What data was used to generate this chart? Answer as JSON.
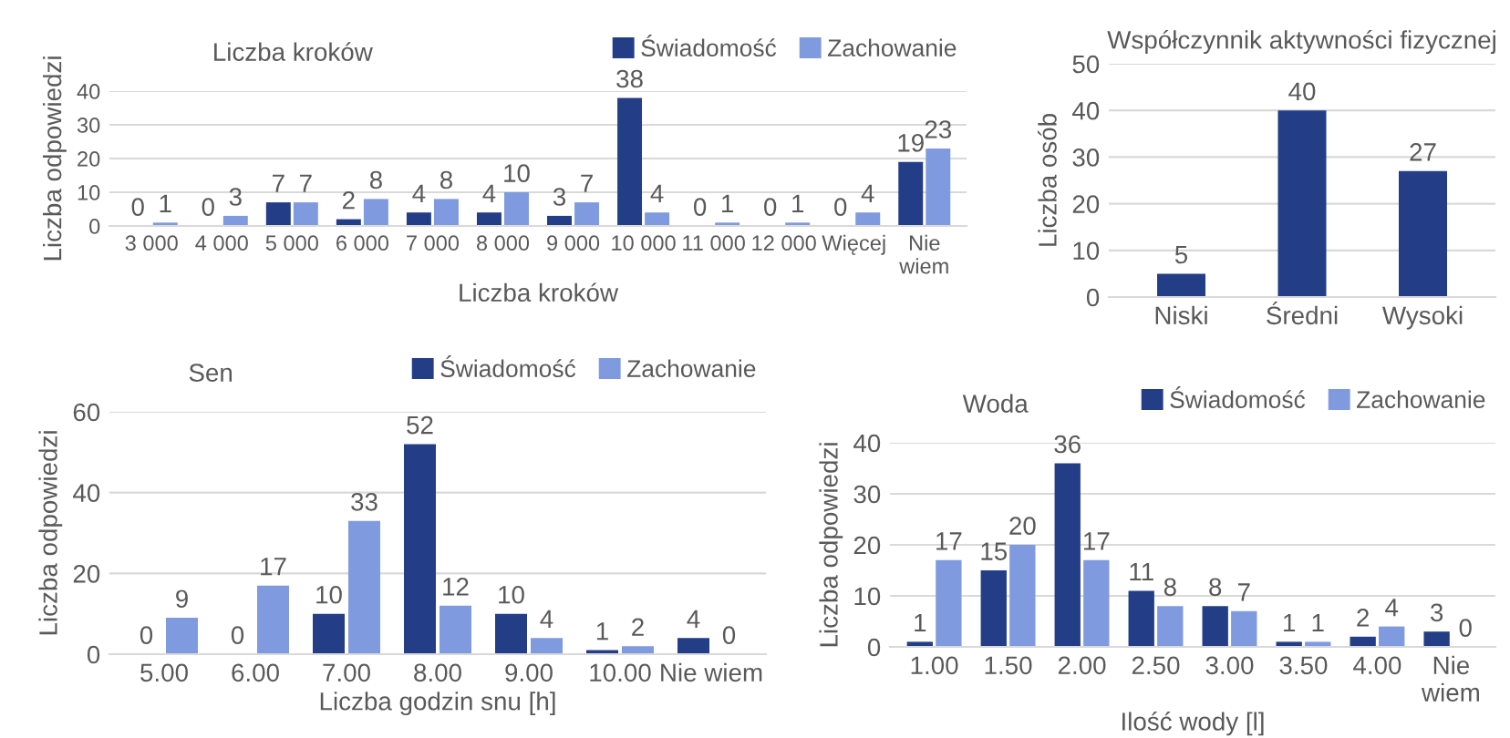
{
  "chart_data": [
    {
      "type": "bar",
      "title": "Liczba kroków",
      "xlabel": "Liczba kroków",
      "ylabel": "Liczba odpowiedzi",
      "categories": [
        "3 000",
        "4 000",
        "5 000",
        "6 000",
        "7 000",
        "8 000",
        "9 000",
        "10 000",
        "11 000",
        "12 000",
        "Więcej",
        "Nie\nwiem"
      ],
      "series": [
        {
          "name": "Świadomość",
          "color": "#233e86",
          "values": [
            0,
            0,
            7,
            2,
            4,
            4,
            3,
            38,
            0,
            0,
            0,
            19
          ]
        },
        {
          "name": "Zachowanie",
          "color": "#7f9ade",
          "values": [
            1,
            3,
            7,
            8,
            8,
            10,
            7,
            4,
            1,
            1,
            4,
            23
          ]
        }
      ],
      "ylim": [
        0,
        40
      ],
      "yticks": [
        0,
        10,
        20,
        30,
        40
      ],
      "grid": "y",
      "legend": "top",
      "data_labels": true
    },
    {
      "type": "bar",
      "title": "Współczynnik aktywności fizycznej",
      "ylabel": "Liczba osób",
      "categories": [
        "Niski",
        "Średni",
        "Wysoki"
      ],
      "series": [
        {
          "color": "#233e86",
          "values": [
            5,
            40,
            27
          ]
        }
      ],
      "ylim": [
        0,
        50
      ],
      "yticks": [
        0,
        10,
        20,
        30,
        40,
        50
      ],
      "grid": "y",
      "data_labels": true
    },
    {
      "type": "bar",
      "title": "Sen",
      "xlabel": "Liczba godzin snu [h]",
      "ylabel": "Liczba odpowiedzi",
      "categories": [
        "5.00",
        "6.00",
        "7.00",
        "8.00",
        "9.00",
        "10.00",
        "Nie wiem"
      ],
      "series": [
        {
          "name": "Świadomość",
          "color": "#233e86",
          "values": [
            0,
            0,
            10,
            52,
            10,
            1,
            4
          ]
        },
        {
          "name": "Zachowanie",
          "color": "#7f9ade",
          "values": [
            9,
            17,
            33,
            12,
            4,
            2,
            0
          ]
        }
      ],
      "ylim": [
        0,
        60
      ],
      "yticks": [
        0,
        20,
        40,
        60
      ],
      "grid": "y",
      "legend": "top",
      "data_labels": true
    },
    {
      "type": "bar",
      "title": "Woda",
      "xlabel": "Ilość wody [l]",
      "ylabel": "Liczba odpowiedzi",
      "categories": [
        "1.00",
        "1.50",
        "2.00",
        "2.50",
        "3.00",
        "3.50",
        "4.00",
        "Nie\nwiem"
      ],
      "series": [
        {
          "name": "Świadomość",
          "color": "#233e86",
          "values": [
            1,
            15,
            36,
            11,
            8,
            1,
            2,
            3
          ]
        },
        {
          "name": "Zachowanie",
          "color": "#7f9ade",
          "values": [
            17,
            20,
            17,
            8,
            7,
            1,
            4,
            0
          ]
        }
      ],
      "ylim": [
        0,
        40
      ],
      "yticks": [
        0,
        10,
        20,
        30,
        40
      ],
      "grid": "y",
      "legend": "top",
      "data_labels": true
    }
  ]
}
